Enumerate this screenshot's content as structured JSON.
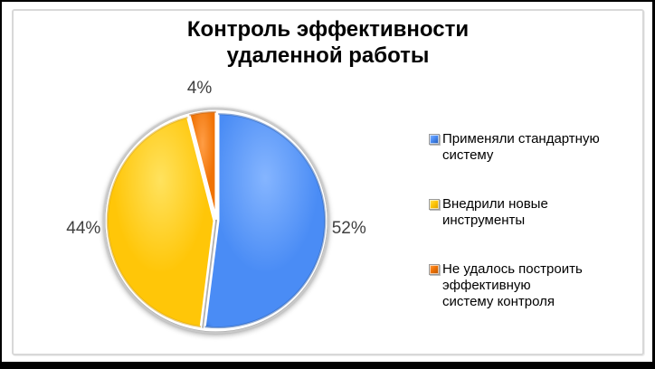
{
  "title": {
    "display": "Контроль эффективности\nудаленной работы"
  },
  "chart_data": {
    "type": "pie",
    "title": "Контроль эффективности удаленной работы",
    "start_angle": "top",
    "direction": "clockwise",
    "legend_position": "right",
    "data_labels": "outside, percent",
    "unit": "%",
    "slices": [
      {
        "label": "Применяли стандартную систему",
        "value": 52,
        "display": "52%",
        "color": "#4A8CF5",
        "color_light": "#85B5FF",
        "color_dark": "#1E55AE"
      },
      {
        "label": "Внедрили новые инструменты",
        "value": 44,
        "display": "44%",
        "color": "#FFC608",
        "color_light": "#FFE25E",
        "color_dark": "#D89E00"
      },
      {
        "label": "Не удалось построить эффективную систему контроля",
        "value": 4,
        "display": "4%",
        "color": "#F07306",
        "color_light": "#FF9D45",
        "color_dark": "#B55403"
      }
    ]
  },
  "legend": {
    "items": [
      {
        "text": "Применяли стандартную\nсистему"
      },
      {
        "text": "Внедрили новые\nинструменты"
      },
      {
        "text": "Не удалось построить\nэффективную\nсистему контроля"
      }
    ]
  }
}
